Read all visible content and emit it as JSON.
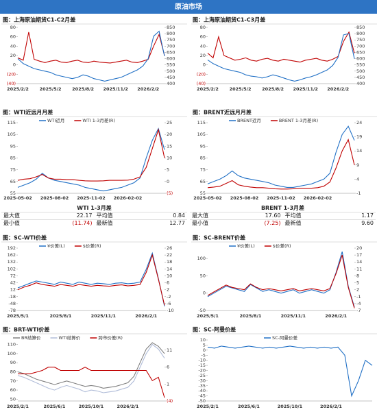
{
  "header": {
    "title": "原油市场"
  },
  "chart_data": [
    {
      "type": "line",
      "title": "图：上海原油期货C1-C2月差",
      "categories": [
        "2025/2/2",
        null,
        null,
        null,
        null,
        null,
        "2025/5/2",
        null,
        null,
        null,
        null,
        null,
        "2025/8/2",
        null,
        null,
        null,
        null,
        null,
        "2025/11/2",
        null,
        null,
        null,
        null,
        null,
        "2026/2/2",
        null,
        null,
        null
      ],
      "ylim": [
        -40,
        80
      ],
      "yticks": [
        {
          "value": -40,
          "label": "(40)"
        },
        {
          "value": -20,
          "label": "(20)"
        },
        0,
        20,
        40,
        60,
        80
      ],
      "y2lim": [
        400,
        850
      ],
      "y2ticks": [
        400,
        450,
        500,
        550,
        600,
        650,
        700,
        750,
        800,
        850
      ],
      "series": [
        {
          "color": "#c00000",
          "values": [
            15,
            10,
            70,
            12,
            8,
            5,
            8,
            10,
            6,
            5,
            8,
            10,
            6,
            5,
            8,
            6,
            5,
            4,
            6,
            8,
            10,
            6,
            5,
            8,
            12,
            40,
            65,
            20
          ]
        },
        {
          "color": "#1f6fc5",
          "axis": "y2",
          "values": [
            600,
            560,
            540,
            520,
            510,
            500,
            490,
            470,
            460,
            450,
            440,
            450,
            470,
            460,
            440,
            430,
            420,
            430,
            440,
            450,
            470,
            490,
            510,
            540,
            600,
            780,
            820,
            620
          ]
        }
      ]
    },
    {
      "type": "line",
      "title": "图：上海原油期货C1-C3月差",
      "categories": [
        "2025/2/2",
        null,
        null,
        null,
        null,
        null,
        "2025/5/2",
        null,
        null,
        null,
        null,
        null,
        "2025/8/2",
        null,
        null,
        null,
        null,
        null,
        "2025/11/2",
        null,
        null,
        null,
        null,
        null,
        "2026/2/2",
        null,
        null,
        null
      ],
      "ylim": [
        -40,
        80
      ],
      "yticks": [
        {
          "value": -40,
          "label": "(40)"
        },
        {
          "value": -20,
          "label": "(20)"
        },
        0,
        20,
        40,
        60,
        80
      ],
      "y2lim": [
        400,
        850
      ],
      "y2ticks": [
        400,
        450,
        500,
        550,
        600,
        650,
        700,
        750,
        800,
        850
      ],
      "series": [
        {
          "color": "#c00000",
          "values": [
            25,
            15,
            60,
            20,
            15,
            10,
            12,
            15,
            10,
            8,
            12,
            14,
            10,
            8,
            12,
            10,
            8,
            6,
            10,
            12,
            14,
            10,
            8,
            12,
            18,
            50,
            70,
            25
          ]
        },
        {
          "color": "#1f6fc5",
          "axis": "y2",
          "values": [
            590,
            560,
            540,
            520,
            510,
            500,
            490,
            470,
            460,
            455,
            445,
            455,
            470,
            460,
            445,
            430,
            420,
            430,
            445,
            455,
            470,
            490,
            510,
            545,
            610,
            790,
            800,
            600
          ]
        }
      ]
    },
    {
      "type": "line",
      "title": "图：WTI近远月月差",
      "categories": [
        "2025-05-02",
        null,
        null,
        null,
        null,
        null,
        "2025-08-02",
        null,
        null,
        null,
        null,
        null,
        "2025-11-02",
        null,
        null,
        null,
        null,
        null,
        "2026-02-02",
        null,
        null,
        null,
        null,
        null,
        null
      ],
      "ylim": [
        55,
        115
      ],
      "yticks": [
        55,
        65,
        75,
        85,
        95,
        105,
        115
      ],
      "y2lim": [
        -5,
        25
      ],
      "y2ticks": [
        {
          "value": -5,
          "label": "(5)"
        },
        0,
        5,
        10,
        15,
        20,
        25
      ],
      "series": [
        {
          "name": "WTI近月",
          "color": "#1f6fc5",
          "values": [
            60,
            62,
            64,
            67,
            72,
            68,
            66,
            65,
            64,
            63,
            62,
            60,
            59,
            58,
            57,
            58,
            59,
            60,
            62,
            64,
            68,
            85,
            100,
            110,
            92
          ]
        },
        {
          "name": "WTI 1-3月差(R)",
          "color": "#c00000",
          "axis": "y2",
          "values": [
            0.5,
            1,
            1.2,
            2,
            3,
            1.5,
            1,
            1,
            0.8,
            0.8,
            0.5,
            0.3,
            0.2,
            0.2,
            0.3,
            0.5,
            0.5,
            0.5,
            0.6,
            1,
            2,
            6,
            14,
            22,
            10
          ]
        }
      ]
    },
    {
      "type": "line",
      "title": "图：BRENT近远月月差",
      "categories": [
        "2025-05-02",
        null,
        null,
        null,
        null,
        null,
        "2025-08-02",
        null,
        null,
        null,
        null,
        null,
        "2025-11-02",
        null,
        null,
        null,
        null,
        null,
        "2026-02-02",
        null,
        null,
        null,
        null,
        null,
        null
      ],
      "ylim": [
        55,
        115
      ],
      "yticks": [
        55,
        65,
        75,
        85,
        95,
        105,
        115
      ],
      "y2lim": [
        -1,
        24
      ],
      "y2ticks": [
        -1,
        4,
        9,
        14,
        19,
        24
      ],
      "series": [
        {
          "name": "BRENT近月",
          "color": "#1f6fc5",
          "values": [
            63,
            65,
            67,
            70,
            74,
            70,
            68,
            67,
            66,
            65,
            64,
            62,
            61,
            60,
            60,
            61,
            62,
            63,
            65,
            67,
            72,
            90,
            105,
            112,
            100
          ]
        },
        {
          "name": "BRENT 1-3月差(R)",
          "color": "#c00000",
          "axis": "y2",
          "values": [
            1,
            1.2,
            1.5,
            2.5,
            3.5,
            2,
            1.5,
            1.2,
            1,
            1,
            0.8,
            0.6,
            0.5,
            0.5,
            0.6,
            0.8,
            0.8,
            0.8,
            1,
            1.5,
            3,
            8,
            14,
            18,
            9
          ]
        }
      ]
    },
    {
      "type": "line",
      "title": "图：SC-WTI价差",
      "categories": [
        "2025/5/1",
        null,
        null,
        null,
        null,
        null,
        null,
        "2025/8/1",
        null,
        null,
        null,
        null,
        null,
        null,
        "2025/11/1",
        null,
        null,
        null,
        null,
        null,
        null,
        "2026/2/1",
        null,
        null,
        null
      ],
      "ylim": [
        -78,
        192
      ],
      "yticks": [
        -78,
        -48,
        -18,
        12,
        42,
        72,
        102,
        132,
        162,
        192
      ],
      "y2lim": [
        -10,
        26
      ],
      "y2ticks": [
        -10,
        -6,
        -2,
        2,
        6,
        10,
        14,
        18,
        22,
        26
      ],
      "series": [
        {
          "name": "¥价差(L)",
          "color": "#1f6fc5",
          "values": [
            20,
            30,
            40,
            50,
            45,
            40,
            35,
            45,
            40,
            35,
            45,
            40,
            35,
            40,
            38,
            35,
            40,
            42,
            38,
            40,
            45,
            100,
            170,
            60,
            -60
          ]
        },
        {
          "name": "$价差(R)",
          "color": "#c00000",
          "axis": "y2",
          "values": [
            2,
            3.5,
            4.5,
            6,
            5,
            4.5,
            4,
            5,
            4.5,
            4,
            5,
            4.5,
            4,
            4.5,
            4.2,
            4,
            4.5,
            4.8,
            4.2,
            4.5,
            5,
            12,
            22,
            8,
            -7
          ]
        }
      ]
    },
    {
      "type": "line",
      "title": "图：SC-BRENT价差",
      "categories": [
        "2025/5/1",
        null,
        null,
        null,
        null,
        null,
        null,
        "2025/8/1",
        null,
        null,
        null,
        null,
        null,
        null,
        "2025/11/1",
        null,
        null,
        null,
        null,
        null,
        null,
        "2026/2/1",
        null,
        null,
        null
      ],
      "ylim": [
        -50,
        130
      ],
      "yticks": [
        -50,
        0,
        50,
        100
      ],
      "y2lim": [
        -7,
        20
      ],
      "y2ticks": [
        -7,
        -4,
        -1,
        2,
        5,
        8,
        11,
        14,
        17,
        20
      ],
      "series": [
        {
          "name": "¥价差(L)",
          "color": "#1f6fc5",
          "values": [
            -10,
            0,
            10,
            20,
            15,
            10,
            5,
            25,
            15,
            5,
            10,
            5,
            0,
            5,
            10,
            0,
            5,
            10,
            5,
            0,
            10,
            60,
            120,
            20,
            -40
          ]
        },
        {
          "name": "$价差(R)",
          "color": "#c00000",
          "axis": "y2",
          "values": [
            -0.5,
            1,
            2.5,
            4,
            3,
            2.5,
            2,
            4.5,
            3,
            2,
            2.5,
            2,
            1.5,
            2,
            2.5,
            1.5,
            2,
            2.5,
            2,
            1.5,
            2.5,
            9,
            17,
            3,
            -6
          ]
        }
      ]
    },
    {
      "type": "line",
      "title": "图：BRT-WTI价差",
      "categories": [
        "2025/2/1",
        null,
        null,
        null,
        null,
        null,
        "2025/6/1",
        null,
        null,
        null,
        null,
        null,
        "2025/10/1",
        null,
        null,
        null,
        null,
        null,
        "2026/2/1",
        null,
        null,
        null,
        null,
        null,
        null
      ],
      "ylim": [
        48,
        115
      ],
      "yticks": [
        50,
        60,
        70,
        80,
        90,
        100,
        110
      ],
      "y2lim": [
        -4,
        14
      ],
      "y2ticks": [
        {
          "value": -4,
          "label": "(4)"
        },
        1,
        6,
        11
      ],
      "series": [
        {
          "name": "BR结算价",
          "color": "#808080",
          "values": [
            80,
            78,
            75,
            72,
            70,
            68,
            66,
            68,
            70,
            68,
            66,
            64,
            65,
            64,
            62,
            63,
            64,
            66,
            68,
            75,
            90,
            105,
            112,
            108,
            100
          ]
        },
        {
          "name": "WTI结算价",
          "color": "#b0bcd8",
          "values": [
            76,
            74,
            71,
            68,
            65,
            62,
            60,
            63,
            65,
            63,
            61,
            58,
            60,
            59,
            57,
            58,
            59,
            61,
            63,
            70,
            85,
            100,
            110,
            105,
            95
          ]
        },
        {
          "name": "跨市价差(R)",
          "color": "#c00000",
          "axis": "y2",
          "values": [
            4,
            4,
            4,
            4.5,
            5,
            6,
            6,
            5,
            5,
            5,
            5,
            6,
            5,
            5,
            5,
            5,
            5,
            5,
            5,
            5,
            5,
            5,
            2,
            3,
            -3
          ]
        }
      ]
    },
    {
      "type": "line",
      "title": "图：SC-阿曼价差",
      "categories": [
        "2025/2/1",
        null,
        null,
        null,
        null,
        null,
        "2025/6/1",
        null,
        null,
        null,
        null,
        null,
        "2025/10/1",
        null,
        null,
        null,
        null,
        null,
        "2026/2/1",
        null,
        null,
        null,
        null,
        null,
        null
      ],
      "ylim": [
        -50,
        10
      ],
      "yticks": [
        -50,
        -45,
        -40,
        -35,
        -30,
        -25,
        -20,
        -15,
        -10,
        -5,
        0,
        5,
        10
      ],
      "series": [
        {
          "name": "SC-阿曼价差",
          "color": "#1f6fc5",
          "values": [
            3,
            2,
            4,
            3,
            2,
            3,
            4,
            3,
            2,
            3,
            2,
            3,
            4,
            3,
            2,
            3,
            2,
            3,
            2,
            3,
            -5,
            -45,
            -30,
            -10,
            -15
          ]
        }
      ]
    }
  ],
  "tables": [
    {
      "title": "WTI 1-3月差",
      "rows": [
        [
          "最大值",
          "22.17",
          "平均值",
          "0.84"
        ],
        [
          "最小值",
          "(11.74)",
          "最新值",
          "12.77"
        ]
      ]
    },
    {
      "title": "BRENT 1-3月差",
      "rows": [
        [
          "最大值",
          "17.60",
          "平均值",
          "1.17"
        ],
        [
          "最小值",
          "(7.25)",
          "最新值",
          "9.60"
        ]
      ]
    }
  ]
}
